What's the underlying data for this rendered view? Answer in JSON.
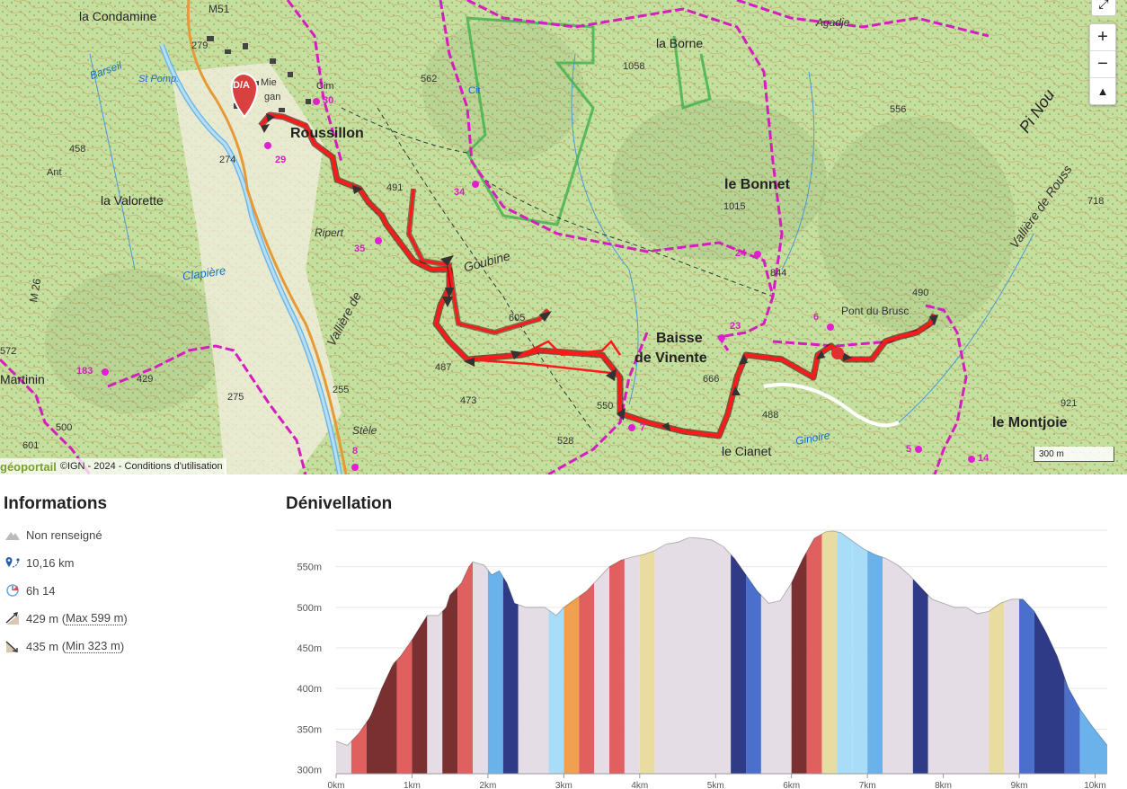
{
  "map": {
    "labels": {
      "condamine": "la Condamine",
      "roussillon": "Roussillon",
      "borne": "la Borne",
      "bonnet": "le Bonnet",
      "baisse1": "Baisse",
      "baisse2": "de Vinente",
      "valorette": "la Valorette",
      "montjoie": "le Montjoie",
      "cianet": "le Cianet",
      "pontbrusc": "Pont du Brusc",
      "martinin": "Martinin",
      "ripert": "Ripert",
      "agadje": "Agadje",
      "stele": "Stèle",
      "ant": "Ant",
      "mie": "Mie",
      "gan": "gan",
      "cim": "Cim",
      "cit": "Cit",
      "vallierede": "Vallière de",
      "goubine": "Goubine",
      "clapiere": "Clapière",
      "ginoire": "Ginoire",
      "vallieredr": "Vallière de Rouss",
      "m26": "M 26",
      "m51": "M51",
      "stpomp": "St Pomp.",
      "barseil": "Barseil",
      "pinou": "Pi Nou"
    },
    "altitudes": {
      "a279": "279",
      "a274": "274",
      "a458": "458",
      "a562": "562",
      "a1058": "1058",
      "a556": "556",
      "a491": "491",
      "a1015": "1015",
      "a844": "844",
      "a605": "605",
      "a487": "487",
      "a473": "473",
      "a550": "550",
      "a666": "666",
      "a488": "488",
      "a528": "528",
      "a718": "718",
      "a490": "490",
      "a921": "921",
      "a255": "255",
      "a275": "275",
      "a429": "429",
      "a500": "500",
      "a572": "572",
      "a601": "601"
    },
    "waypoints": {
      "w30": "30",
      "w29": "29",
      "w34": "34",
      "w35": "35",
      "w24": "24",
      "w23": "23",
      "w6": "6",
      "w7": "7",
      "w5": "5",
      "w8": "8",
      "w183": "183",
      "w14": "14"
    },
    "start_marker": "D/A",
    "controls": {
      "zoom_in": "+",
      "zoom_out": "−",
      "north": "▲"
    },
    "attribution": {
      "logo": "géoportail",
      "ign": "©IGN - 2024 -",
      "terms": "Conditions d'utilisation"
    },
    "scale_label": "300 m"
  },
  "info": {
    "title": "Informations",
    "difficulty": "Non renseigné",
    "distance": "10,16 km",
    "duration": "6h 14",
    "ascent_value": "429 m",
    "ascent_open": "(",
    "ascent_max": "Max 599 m",
    "ascent_close": ")",
    "descent_value": "435 m",
    "descent_open": "(",
    "descent_min": "Min 323 m",
    "descent_close": ")"
  },
  "chart_data": {
    "type": "area",
    "title": "Dénivellation",
    "xlabel": "",
    "ylabel": "",
    "xlim": [
      0,
      10.16
    ],
    "ylim": [
      295,
      595
    ],
    "yticks": [
      300,
      350,
      400,
      450,
      500,
      550
    ],
    "ytick_labels": [
      "300m",
      "350m",
      "400m",
      "450m",
      "500m",
      "550m"
    ],
    "xticks": [
      0,
      1,
      2,
      3,
      4,
      5,
      6,
      7,
      8,
      9,
      10
    ],
    "xtick_labels": [
      "0km",
      "1km",
      "2km",
      "3km",
      "4km",
      "5km",
      "6km",
      "7km",
      "8km",
      "9km",
      "10km"
    ],
    "grid": "horizontal",
    "profile": {
      "x": [
        0,
        0.15,
        0.3,
        0.45,
        0.6,
        0.75,
        0.85,
        1.0,
        1.1,
        1.2,
        1.35,
        1.45,
        1.5,
        1.65,
        1.75,
        1.8,
        1.95,
        2.05,
        2.15,
        2.25,
        2.35,
        2.5,
        2.6,
        2.75,
        2.9,
        3.0,
        3.15,
        3.3,
        3.45,
        3.6,
        3.75,
        3.9,
        4.05,
        4.2,
        4.35,
        4.5,
        4.65,
        4.8,
        4.95,
        5.1,
        5.25,
        5.4,
        5.55,
        5.7,
        5.85,
        6.0,
        6.15,
        6.3,
        6.45,
        6.55,
        6.65,
        6.8,
        6.95,
        7.1,
        7.25,
        7.4,
        7.55,
        7.7,
        7.85,
        8.0,
        8.15,
        8.3,
        8.45,
        8.6,
        8.75,
        8.9,
        9.05,
        9.2,
        9.35,
        9.5,
        9.65,
        9.8,
        9.95,
        10.16
      ],
      "y": [
        335,
        330,
        345,
        365,
        400,
        430,
        440,
        460,
        475,
        490,
        490,
        500,
        515,
        530,
        550,
        556,
        552,
        540,
        545,
        530,
        505,
        500,
        500,
        500,
        490,
        500,
        510,
        520,
        535,
        550,
        558,
        562,
        565,
        570,
        578,
        580,
        586,
        585,
        583,
        575,
        560,
        540,
        520,
        505,
        508,
        530,
        560,
        585,
        593,
        594,
        592,
        582,
        572,
        565,
        560,
        552,
        540,
        525,
        510,
        505,
        500,
        500,
        492,
        495,
        505,
        510,
        510,
        495,
        470,
        440,
        400,
        375,
        355,
        330
      ]
    },
    "colors": {
      "neutral": "#e5dde6",
      "dark_red": "#7a2f30",
      "red": "#e06060",
      "orange": "#f0a050",
      "sand": "#e9dca0",
      "light_blue": "#a9dcf7",
      "blue": "#6bb2ea",
      "mid_blue": "#4a70cc",
      "navy": "#2f3b86"
    },
    "segments": [
      {
        "from": 0.0,
        "to": 0.2,
        "color": "neutral"
      },
      {
        "from": 0.2,
        "to": 0.4,
        "color": "red"
      },
      {
        "from": 0.4,
        "to": 0.8,
        "color": "dark_red"
      },
      {
        "from": 0.8,
        "to": 1.0,
        "color": "red"
      },
      {
        "from": 1.0,
        "to": 1.2,
        "color": "dark_red"
      },
      {
        "from": 1.2,
        "to": 1.4,
        "color": "neutral"
      },
      {
        "from": 1.4,
        "to": 1.6,
        "color": "dark_red"
      },
      {
        "from": 1.6,
        "to": 1.8,
        "color": "red"
      },
      {
        "from": 1.8,
        "to": 2.0,
        "color": "neutral"
      },
      {
        "from": 2.0,
        "to": 2.2,
        "color": "blue"
      },
      {
        "from": 2.2,
        "to": 2.4,
        "color": "navy"
      },
      {
        "from": 2.4,
        "to": 2.8,
        "color": "neutral"
      },
      {
        "from": 2.8,
        "to": 3.0,
        "color": "light_blue"
      },
      {
        "from": 3.0,
        "to": 3.2,
        "color": "orange"
      },
      {
        "from": 3.2,
        "to": 3.4,
        "color": "red"
      },
      {
        "from": 3.4,
        "to": 3.6,
        "color": "neutral"
      },
      {
        "from": 3.6,
        "to": 3.8,
        "color": "red"
      },
      {
        "from": 3.8,
        "to": 4.0,
        "color": "neutral"
      },
      {
        "from": 4.0,
        "to": 4.2,
        "color": "sand"
      },
      {
        "from": 4.2,
        "to": 5.2,
        "color": "neutral"
      },
      {
        "from": 5.2,
        "to": 5.4,
        "color": "navy"
      },
      {
        "from": 5.4,
        "to": 5.6,
        "color": "mid_blue"
      },
      {
        "from": 5.6,
        "to": 6.0,
        "color": "neutral"
      },
      {
        "from": 6.0,
        "to": 6.2,
        "color": "dark_red"
      },
      {
        "from": 6.2,
        "to": 6.4,
        "color": "red"
      },
      {
        "from": 6.4,
        "to": 6.6,
        "color": "sand"
      },
      {
        "from": 6.6,
        "to": 6.8,
        "color": "light_blue"
      },
      {
        "from": 6.8,
        "to": 7.0,
        "color": "light_blue"
      },
      {
        "from": 7.0,
        "to": 7.2,
        "color": "blue"
      },
      {
        "from": 7.2,
        "to": 7.6,
        "color": "neutral"
      },
      {
        "from": 7.6,
        "to": 7.8,
        "color": "navy"
      },
      {
        "from": 7.8,
        "to": 8.6,
        "color": "neutral"
      },
      {
        "from": 8.6,
        "to": 8.8,
        "color": "sand"
      },
      {
        "from": 8.8,
        "to": 9.0,
        "color": "neutral"
      },
      {
        "from": 9.0,
        "to": 9.2,
        "color": "mid_blue"
      },
      {
        "from": 9.2,
        "to": 9.6,
        "color": "navy"
      },
      {
        "from": 9.6,
        "to": 9.8,
        "color": "mid_blue"
      },
      {
        "from": 9.8,
        "to": 10.16,
        "color": "blue"
      }
    ]
  }
}
